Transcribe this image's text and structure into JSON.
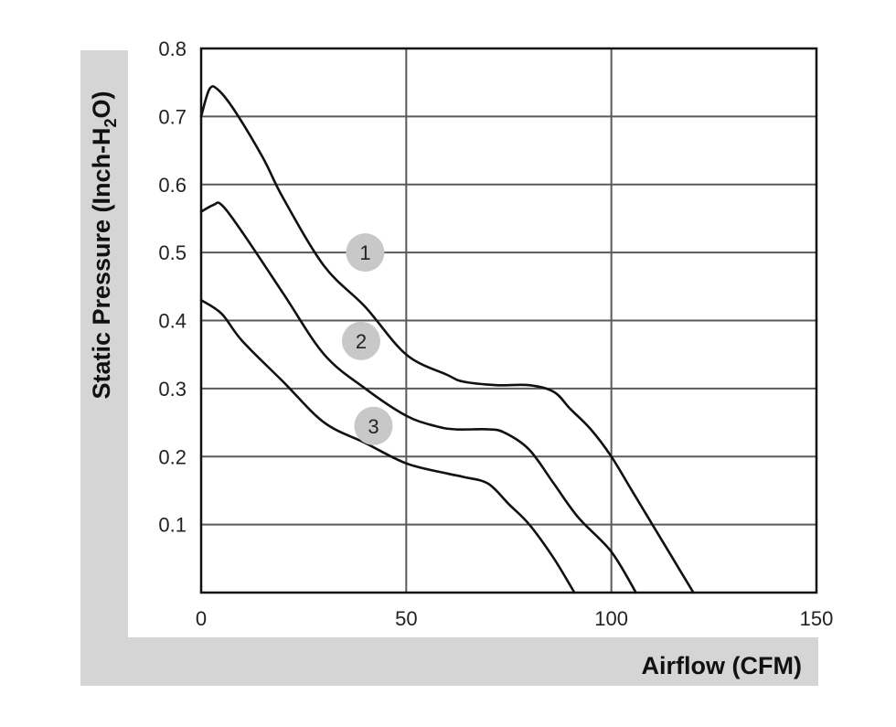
{
  "chart_data": {
    "type": "line",
    "xlabel": "Airflow (CFM)",
    "ylabel_parts": [
      "Static Pressure (Inch-H",
      "2",
      "O)"
    ],
    "xlim": [
      0,
      150
    ],
    "ylim": [
      0,
      0.8
    ],
    "x_ticks": [
      "0",
      "50",
      "100",
      "150"
    ],
    "y_ticks": [
      "0.1",
      "0.2",
      "0.3",
      "0.4",
      "0.5",
      "0.6",
      "0.7",
      "0.8"
    ],
    "grid": true,
    "series": [
      {
        "label": "1",
        "points": [
          [
            0,
            0.7
          ],
          [
            2,
            0.74
          ],
          [
            4,
            0.74
          ],
          [
            8,
            0.71
          ],
          [
            15,
            0.64
          ],
          [
            20,
            0.58
          ],
          [
            30,
            0.48
          ],
          [
            40,
            0.42
          ],
          [
            50,
            0.35
          ],
          [
            60,
            0.32
          ],
          [
            64,
            0.31
          ],
          [
            72,
            0.305
          ],
          [
            80,
            0.305
          ],
          [
            86,
            0.295
          ],
          [
            90,
            0.27
          ],
          [
            95,
            0.24
          ],
          [
            100,
            0.2
          ],
          [
            105,
            0.15
          ],
          [
            110,
            0.1
          ],
          [
            115,
            0.05
          ],
          [
            120,
            0.0
          ]
        ]
      },
      {
        "label": "2",
        "points": [
          [
            0,
            0.56
          ],
          [
            3,
            0.57
          ],
          [
            5,
            0.57
          ],
          [
            10,
            0.53
          ],
          [
            20,
            0.44
          ],
          [
            30,
            0.35
          ],
          [
            40,
            0.3
          ],
          [
            50,
            0.26
          ],
          [
            57,
            0.245
          ],
          [
            62,
            0.24
          ],
          [
            70,
            0.24
          ],
          [
            74,
            0.235
          ],
          [
            80,
            0.21
          ],
          [
            86,
            0.16
          ],
          [
            92,
            0.11
          ],
          [
            100,
            0.06
          ],
          [
            106,
            0.0
          ]
        ]
      },
      {
        "label": "3",
        "points": [
          [
            0,
            0.43
          ],
          [
            5,
            0.41
          ],
          [
            10,
            0.37
          ],
          [
            20,
            0.31
          ],
          [
            30,
            0.25
          ],
          [
            40,
            0.22
          ],
          [
            50,
            0.19
          ],
          [
            60,
            0.175
          ],
          [
            64,
            0.17
          ],
          [
            70,
            0.16
          ],
          [
            75,
            0.13
          ],
          [
            80,
            0.1
          ],
          [
            86,
            0.05
          ],
          [
            91,
            0.0
          ]
        ]
      }
    ],
    "markers": [
      {
        "label": "1",
        "x": 40,
        "y": 0.5
      },
      {
        "label": "2",
        "x": 39,
        "y": 0.37
      },
      {
        "label": "3",
        "x": 42,
        "y": 0.245
      }
    ],
    "colors": {
      "line": "#111111",
      "grid": "#5a5a5a",
      "badge": "#c8c8c8",
      "frame_band": "#d5d5d5"
    }
  }
}
